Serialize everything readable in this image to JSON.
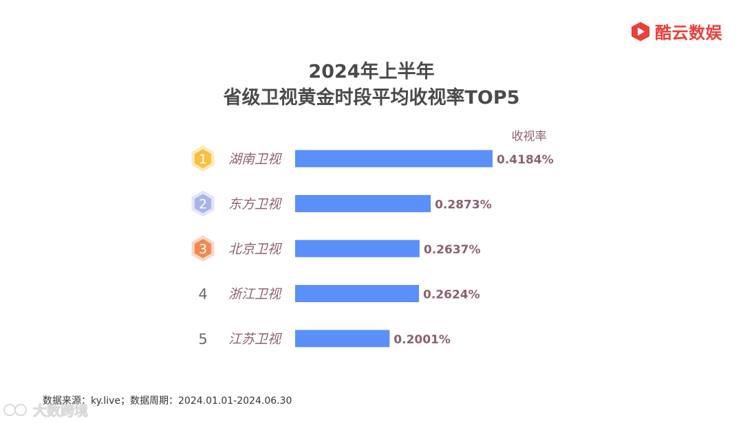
{
  "brand": {
    "name": "酷云数娱",
    "color": "#e8403a"
  },
  "title_line1": "2024年上半年",
  "title_line2": "省级卫视黄金时段平均收视率TOP5",
  "chart_data": {
    "type": "bar",
    "orientation": "horizontal",
    "categories": [
      "湖南卫视",
      "东方卫视",
      "北京卫视",
      "浙江卫视",
      "江苏卫视"
    ],
    "ranks": [
      "1",
      "2",
      "3",
      "4",
      "5"
    ],
    "values": [
      0.4184,
      0.2873,
      0.2637,
      0.2624,
      0.2001
    ],
    "value_labels": [
      "0.4184%",
      "0.2873%",
      "0.2637%",
      "0.2624%",
      "0.2001%"
    ],
    "value_header": "收视率",
    "bar_color": "#5b8ff9",
    "label_color": "#8d6070",
    "rank_badge_colors": [
      "#f6c244",
      "#a9b4e6",
      "#f08a52"
    ],
    "grid": false,
    "legend": "none"
  },
  "source": "数据来源：ky.live；数据周期：2024.01.01-2024.06.30",
  "watermark": "大数跨境"
}
